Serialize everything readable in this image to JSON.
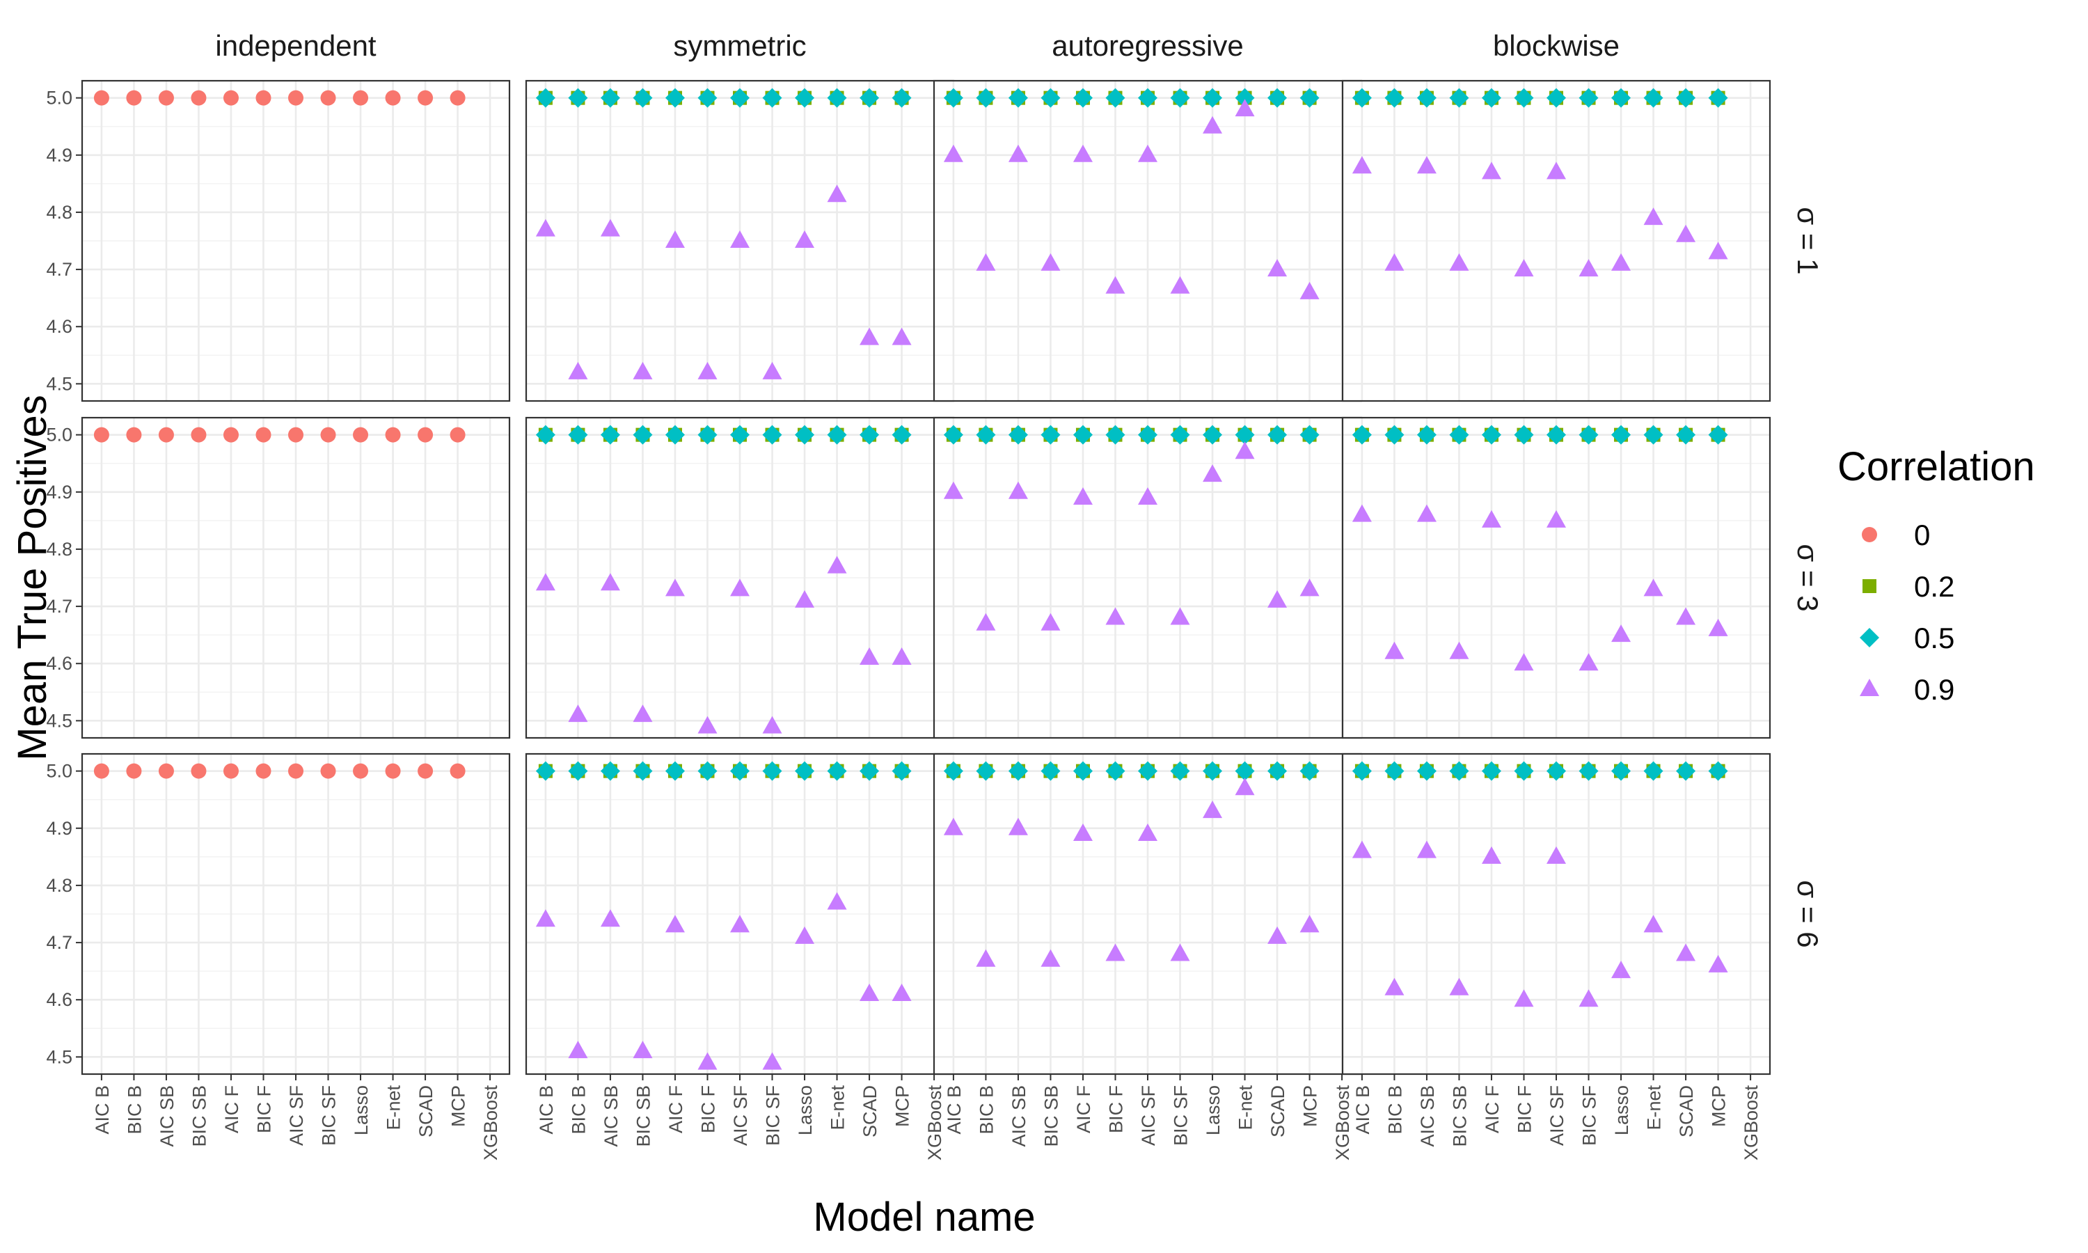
{
  "chart_data": {
    "type": "scatter",
    "xlabel": "Model name",
    "ylabel": "Mean True Positives",
    "ylim": [
      4.47,
      5.03
    ],
    "yticks": [
      "4.5",
      "4.6",
      "4.7",
      "4.8",
      "4.9",
      "5.0"
    ],
    "ytick_values": [
      4.5,
      4.6,
      4.7,
      4.8,
      4.9,
      5.0
    ],
    "categories": [
      "AIC B",
      "BIC B",
      "AIC SB",
      "BIC SB",
      "AIC F",
      "BIC F",
      "AIC SF",
      "BIC SF",
      "Lasso",
      "E-net",
      "SCAD",
      "MCP",
      "XGBoost"
    ],
    "facet_columns": [
      "independent",
      "symmetric",
      "autoregressive",
      "blockwise"
    ],
    "facet_rows": [
      {
        "symbol": "σ",
        "value": "1"
      },
      {
        "symbol": "σ",
        "value": "3"
      },
      {
        "symbol": "σ",
        "value": "6"
      }
    ],
    "grid": true,
    "legend": {
      "title": "Correlation",
      "position": "right",
      "entries": [
        {
          "label": "0",
          "shape": "circle",
          "color": "#F8766D"
        },
        {
          "label": "0.2",
          "shape": "square",
          "color": "#7CAE00"
        },
        {
          "label": "0.5",
          "shape": "diamond",
          "color": "#00BFC4"
        },
        {
          "label": "0.9",
          "shape": "triangle",
          "color": "#C77CFF"
        }
      ]
    },
    "panels": [
      [
        {
          "series": [
            {
              "name": "0",
              "values": [
                5.0,
                5.0,
                5.0,
                5.0,
                5.0,
                5.0,
                5.0,
                5.0,
                5.0,
                5.0,
                5.0,
                5.0,
                null
              ]
            }
          ]
        },
        {
          "series": [
            {
              "name": "0.2",
              "values": [
                5.0,
                5.0,
                5.0,
                5.0,
                5.0,
                5.0,
                5.0,
                5.0,
                5.0,
                5.0,
                5.0,
                5.0,
                null
              ]
            },
            {
              "name": "0.5",
              "values": [
                5.0,
                5.0,
                5.0,
                5.0,
                5.0,
                5.0,
                5.0,
                5.0,
                5.0,
                5.0,
                5.0,
                5.0,
                null
              ]
            },
            {
              "name": "0.9",
              "values": [
                4.77,
                4.52,
                4.77,
                4.52,
                4.75,
                4.52,
                4.75,
                4.52,
                4.75,
                4.83,
                4.58,
                4.58,
                null
              ]
            }
          ]
        },
        {
          "series": [
            {
              "name": "0.2",
              "values": [
                5.0,
                5.0,
                5.0,
                5.0,
                5.0,
                5.0,
                5.0,
                5.0,
                5.0,
                5.0,
                5.0,
                5.0,
                null
              ]
            },
            {
              "name": "0.5",
              "values": [
                5.0,
                5.0,
                5.0,
                5.0,
                5.0,
                5.0,
                5.0,
                5.0,
                5.0,
                5.0,
                5.0,
                5.0,
                null
              ]
            },
            {
              "name": "0.9",
              "values": [
                4.9,
                4.71,
                4.9,
                4.71,
                4.9,
                4.67,
                4.9,
                4.67,
                4.95,
                4.98,
                4.7,
                4.66,
                null
              ]
            }
          ]
        },
        {
          "series": [
            {
              "name": "0.2",
              "values": [
                5.0,
                5.0,
                5.0,
                5.0,
                5.0,
                5.0,
                5.0,
                5.0,
                5.0,
                5.0,
                5.0,
                5.0,
                null
              ]
            },
            {
              "name": "0.5",
              "values": [
                5.0,
                5.0,
                5.0,
                5.0,
                5.0,
                5.0,
                5.0,
                5.0,
                5.0,
                5.0,
                5.0,
                5.0,
                null
              ]
            },
            {
              "name": "0.9",
              "values": [
                4.88,
                4.71,
                4.88,
                4.71,
                4.87,
                4.7,
                4.87,
                4.7,
                4.71,
                4.79,
                4.76,
                4.73,
                null
              ]
            }
          ]
        }
      ],
      [
        {
          "series": [
            {
              "name": "0",
              "values": [
                5.0,
                5.0,
                5.0,
                5.0,
                5.0,
                5.0,
                5.0,
                5.0,
                5.0,
                5.0,
                5.0,
                5.0,
                null
              ]
            }
          ]
        },
        {
          "series": [
            {
              "name": "0.2",
              "values": [
                5.0,
                5.0,
                5.0,
                5.0,
                5.0,
                5.0,
                5.0,
                5.0,
                5.0,
                5.0,
                5.0,
                5.0,
                null
              ]
            },
            {
              "name": "0.5",
              "values": [
                5.0,
                5.0,
                5.0,
                5.0,
                5.0,
                5.0,
                5.0,
                5.0,
                5.0,
                5.0,
                5.0,
                5.0,
                null
              ]
            },
            {
              "name": "0.9",
              "values": [
                4.74,
                4.51,
                4.74,
                4.51,
                4.73,
                4.49,
                4.73,
                4.49,
                4.71,
                4.77,
                4.61,
                4.61,
                null
              ]
            }
          ]
        },
        {
          "series": [
            {
              "name": "0.2",
              "values": [
                5.0,
                5.0,
                5.0,
                5.0,
                5.0,
                5.0,
                5.0,
                5.0,
                5.0,
                5.0,
                5.0,
                5.0,
                null
              ]
            },
            {
              "name": "0.5",
              "values": [
                5.0,
                5.0,
                5.0,
                5.0,
                5.0,
                5.0,
                5.0,
                5.0,
                5.0,
                5.0,
                5.0,
                5.0,
                null
              ]
            },
            {
              "name": "0.9",
              "values": [
                4.9,
                4.67,
                4.9,
                4.67,
                4.89,
                4.68,
                4.89,
                4.68,
                4.93,
                4.97,
                4.71,
                4.73,
                null
              ]
            }
          ]
        },
        {
          "series": [
            {
              "name": "0.2",
              "values": [
                5.0,
                5.0,
                5.0,
                5.0,
                5.0,
                5.0,
                5.0,
                5.0,
                5.0,
                5.0,
                5.0,
                5.0,
                null
              ]
            },
            {
              "name": "0.5",
              "values": [
                5.0,
                5.0,
                5.0,
                5.0,
                5.0,
                5.0,
                5.0,
                5.0,
                5.0,
                5.0,
                5.0,
                5.0,
                null
              ]
            },
            {
              "name": "0.9",
              "values": [
                4.86,
                4.62,
                4.86,
                4.62,
                4.85,
                4.6,
                4.85,
                4.6,
                4.65,
                4.73,
                4.68,
                4.66,
                null
              ]
            }
          ]
        }
      ],
      [
        {
          "series": [
            {
              "name": "0",
              "values": [
                5.0,
                5.0,
                5.0,
                5.0,
                5.0,
                5.0,
                5.0,
                5.0,
                5.0,
                5.0,
                5.0,
                5.0,
                null
              ]
            }
          ]
        },
        {
          "series": [
            {
              "name": "0.2",
              "values": [
                5.0,
                5.0,
                5.0,
                5.0,
                5.0,
                5.0,
                5.0,
                5.0,
                5.0,
                5.0,
                5.0,
                5.0,
                null
              ]
            },
            {
              "name": "0.5",
              "values": [
                5.0,
                5.0,
                5.0,
                5.0,
                5.0,
                5.0,
                5.0,
                5.0,
                5.0,
                5.0,
                5.0,
                5.0,
                null
              ]
            },
            {
              "name": "0.9",
              "values": [
                4.74,
                4.51,
                4.74,
                4.51,
                4.73,
                4.49,
                4.73,
                4.49,
                4.71,
                4.77,
                4.61,
                4.61,
                null
              ]
            }
          ]
        },
        {
          "series": [
            {
              "name": "0.2",
              "values": [
                5.0,
                5.0,
                5.0,
                5.0,
                5.0,
                5.0,
                5.0,
                5.0,
                5.0,
                5.0,
                5.0,
                5.0,
                null
              ]
            },
            {
              "name": "0.5",
              "values": [
                5.0,
                5.0,
                5.0,
                5.0,
                5.0,
                5.0,
                5.0,
                5.0,
                5.0,
                5.0,
                5.0,
                5.0,
                null
              ]
            },
            {
              "name": "0.9",
              "values": [
                4.9,
                4.67,
                4.9,
                4.67,
                4.89,
                4.68,
                4.89,
                4.68,
                4.93,
                4.97,
                4.71,
                4.73,
                null
              ]
            }
          ]
        },
        {
          "series": [
            {
              "name": "0.2",
              "values": [
                5.0,
                5.0,
                5.0,
                5.0,
                5.0,
                5.0,
                5.0,
                5.0,
                5.0,
                5.0,
                5.0,
                5.0,
                null
              ]
            },
            {
              "name": "0.5",
              "values": [
                5.0,
                5.0,
                5.0,
                5.0,
                5.0,
                5.0,
                5.0,
                5.0,
                5.0,
                5.0,
                5.0,
                5.0,
                null
              ]
            },
            {
              "name": "0.9",
              "values": [
                4.86,
                4.62,
                4.86,
                4.62,
                4.85,
                4.6,
                4.85,
                4.6,
                4.65,
                4.73,
                4.68,
                4.66,
                null
              ]
            }
          ]
        }
      ]
    ]
  }
}
